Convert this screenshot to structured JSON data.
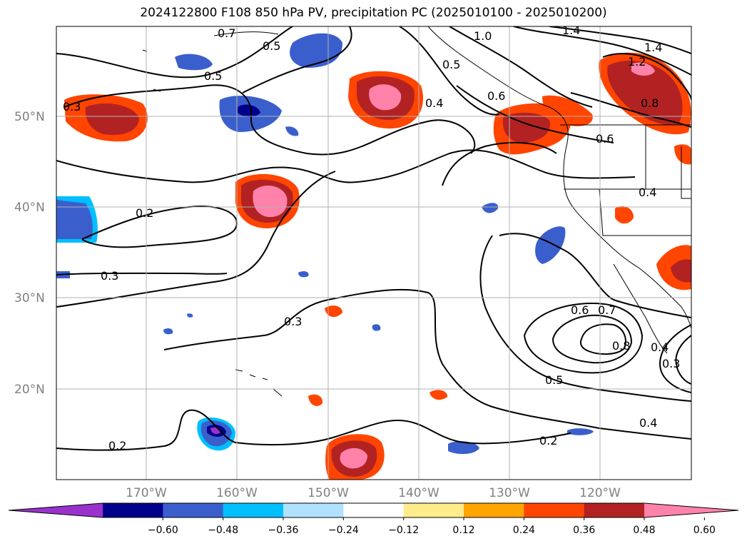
{
  "title": "2024122800 F108 850 hPa PV, precipitation PC (2025010100 - 2025010200)",
  "lat_labels": [
    "50°N",
    "40°N",
    "30°N",
    "20°N"
  ],
  "lon_labels": [
    "170°W",
    "160°W",
    "150°W",
    "140°W",
    "130°W",
    "120°W"
  ],
  "colorbar": {
    "colors": [
      "#9932cc",
      "#00008b",
      "#3a5fcd",
      "#00bfff",
      "#b0e2ff",
      "#ffffff",
      "#ffec8b",
      "#ffa500",
      "#ff4500",
      "#b22222",
      "#ff82ab"
    ],
    "tick_labels": [
      "−0.60",
      "−0.48",
      "−0.36",
      "−0.24",
      "−0.12",
      "0.12",
      "0.24",
      "0.36",
      "0.48",
      "0.60"
    ]
  },
  "contour_labels": [
    "0.7",
    "0.5",
    "0.5",
    "0.3",
    "0.2",
    "0.3",
    "0.4",
    "0.3",
    "0.5",
    "0.6",
    "1.0",
    "1.4",
    "1.4",
    "1.2",
    "0.8",
    "0.6",
    "0.4",
    "0.6",
    "0.7",
    "0.8",
    "0.4",
    "0.3",
    "0.5",
    "0.4",
    "0.2",
    "0.2"
  ],
  "colors": {
    "contour": "#000000",
    "grid": "#b0b0b0",
    "axis_label": "#808080"
  }
}
